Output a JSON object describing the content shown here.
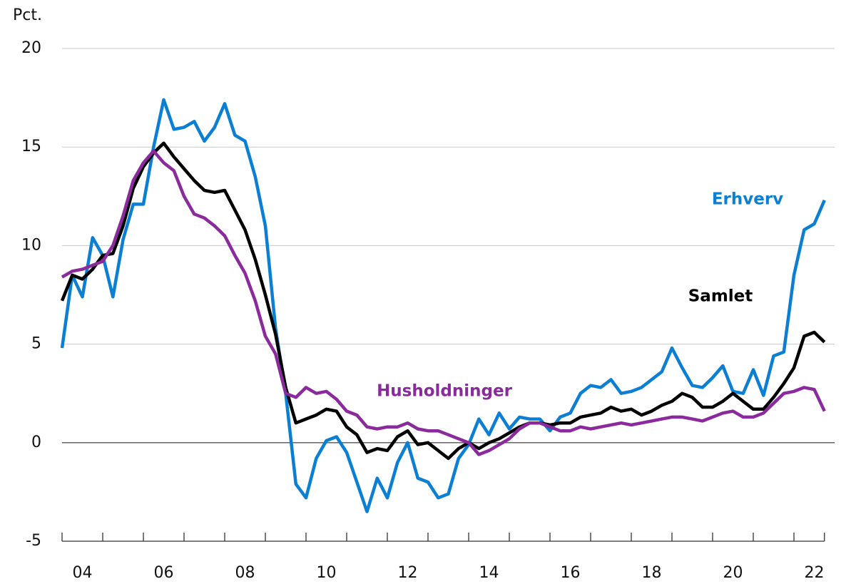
{
  "chart_data": {
    "type": "line",
    "y_label": "Pct.",
    "xlim": [
      2004,
      2023
    ],
    "ylim": [
      -5,
      20
    ],
    "yticks": [
      20,
      15,
      10,
      5,
      0,
      -5
    ],
    "xticks": [
      {
        "value": 2004.5,
        "label": "04"
      },
      {
        "value": 2006.5,
        "label": "06"
      },
      {
        "value": 2008.5,
        "label": "08"
      },
      {
        "value": 2010.5,
        "label": "10"
      },
      {
        "value": 2012.5,
        "label": "12"
      },
      {
        "value": 2014.5,
        "label": "14"
      },
      {
        "value": 2016.5,
        "label": "16"
      },
      {
        "value": 2018.5,
        "label": "18"
      },
      {
        "value": 2020.5,
        "label": "20"
      },
      {
        "value": 2022.5,
        "label": "22"
      }
    ],
    "xminor_ticks": [
      2004,
      2005,
      2006,
      2007,
      2008,
      2009,
      2010,
      2011,
      2012,
      2013,
      2014,
      2015,
      2016,
      2017,
      2018,
      2019,
      2020,
      2021,
      2022
    ],
    "grid": true,
    "x": [
      2004,
      2004.25,
      2004.5,
      2004.75,
      2005,
      2005.25,
      2005.5,
      2005.75,
      2006,
      2006.25,
      2006.5,
      2006.75,
      2007,
      2007.25,
      2007.5,
      2007.75,
      2008,
      2008.25,
      2008.5,
      2008.75,
      2009,
      2009.25,
      2009.5,
      2009.75,
      2010,
      2010.25,
      2010.5,
      2010.75,
      2011,
      2011.25,
      2011.5,
      2011.75,
      2012,
      2012.25,
      2012.5,
      2012.75,
      2013,
      2013.25,
      2013.5,
      2013.75,
      2014,
      2014.25,
      2014.5,
      2014.75,
      2015,
      2015.25,
      2015.5,
      2015.75,
      2016,
      2016.25,
      2016.5,
      2016.75,
      2017,
      2017.25,
      2017.5,
      2017.75,
      2018,
      2018.25,
      2018.5,
      2018.75,
      2019,
      2019.25,
      2019.5,
      2019.75,
      2020,
      2020.25,
      2020.5,
      2020.75,
      2021,
      2021.25,
      2021.5,
      2021.75,
      2022,
      2022.25,
      2022.5,
      2022.75
    ],
    "series": [
      {
        "name": "Erhverv",
        "color": "#0a7fd3",
        "values": [
          4.8,
          8.5,
          7.4,
          10.4,
          9.5,
          7.4,
          10.3,
          12.1,
          12.1,
          15.0,
          17.4,
          15.9,
          16.0,
          16.3,
          15.3,
          16.0,
          17.2,
          15.6,
          15.3,
          13.5,
          11.0,
          5.8,
          2.5,
          -2.1,
          -2.8,
          -0.8,
          0.1,
          0.3,
          -0.5,
          -2.0,
          -3.5,
          -1.8,
          -2.8,
          -1.0,
          0.0,
          -1.8,
          -2.0,
          -2.8,
          -2.6,
          -0.8,
          -0.1,
          1.2,
          0.4,
          1.5,
          0.7,
          1.3,
          1.2,
          1.2,
          0.6,
          1.3,
          1.5,
          2.5,
          2.9,
          2.8,
          3.2,
          2.5,
          2.6,
          2.8,
          3.2,
          3.6,
          4.8,
          3.8,
          2.9,
          2.8,
          3.3,
          3.9,
          2.6,
          2.5,
          3.7,
          2.4,
          4.4,
          4.6,
          8.5,
          10.8,
          11.1,
          12.3
        ]
      },
      {
        "name": "Samlet",
        "color": "#000000",
        "values": [
          7.2,
          8.5,
          8.3,
          8.8,
          9.5,
          9.6,
          11.0,
          12.9,
          14.0,
          14.7,
          15.2,
          14.5,
          13.9,
          13.3,
          12.8,
          12.7,
          12.8,
          11.8,
          10.8,
          9.3,
          7.5,
          5.5,
          2.8,
          1.0,
          1.2,
          1.4,
          1.7,
          1.6,
          0.8,
          0.4,
          -0.5,
          -0.3,
          -0.4,
          0.3,
          0.6,
          -0.1,
          0.0,
          -0.4,
          -0.8,
          -0.3,
          0.0,
          -0.3,
          0.0,
          0.2,
          0.5,
          0.8,
          1.0,
          1.0,
          0.9,
          1.0,
          1.0,
          1.3,
          1.4,
          1.5,
          1.8,
          1.6,
          1.7,
          1.4,
          1.6,
          1.9,
          2.1,
          2.5,
          2.3,
          1.8,
          1.8,
          2.1,
          2.5,
          2.1,
          1.7,
          1.7,
          2.3,
          3.0,
          3.8,
          5.4,
          5.6,
          5.1
        ]
      },
      {
        "name": "Husholdninger",
        "color": "#8b2a9c",
        "values": [
          8.4,
          8.7,
          8.8,
          9.0,
          9.2,
          10.0,
          11.5,
          13.3,
          14.2,
          14.8,
          14.2,
          13.8,
          12.5,
          11.6,
          11.4,
          11.0,
          10.5,
          9.5,
          8.6,
          7.2,
          5.4,
          4.5,
          2.5,
          2.3,
          2.8,
          2.5,
          2.6,
          2.2,
          1.6,
          1.4,
          0.8,
          0.7,
          0.8,
          0.8,
          1.0,
          0.7,
          0.6,
          0.6,
          0.4,
          0.2,
          0.0,
          -0.6,
          -0.4,
          -0.1,
          0.2,
          0.7,
          1.0,
          1.0,
          0.8,
          0.6,
          0.6,
          0.8,
          0.7,
          0.8,
          0.9,
          1.0,
          0.9,
          1.0,
          1.1,
          1.2,
          1.3,
          1.3,
          1.2,
          1.1,
          1.3,
          1.5,
          1.6,
          1.3,
          1.3,
          1.5,
          2.0,
          2.5,
          2.6,
          2.8,
          2.7,
          1.6
        ]
      }
    ]
  }
}
